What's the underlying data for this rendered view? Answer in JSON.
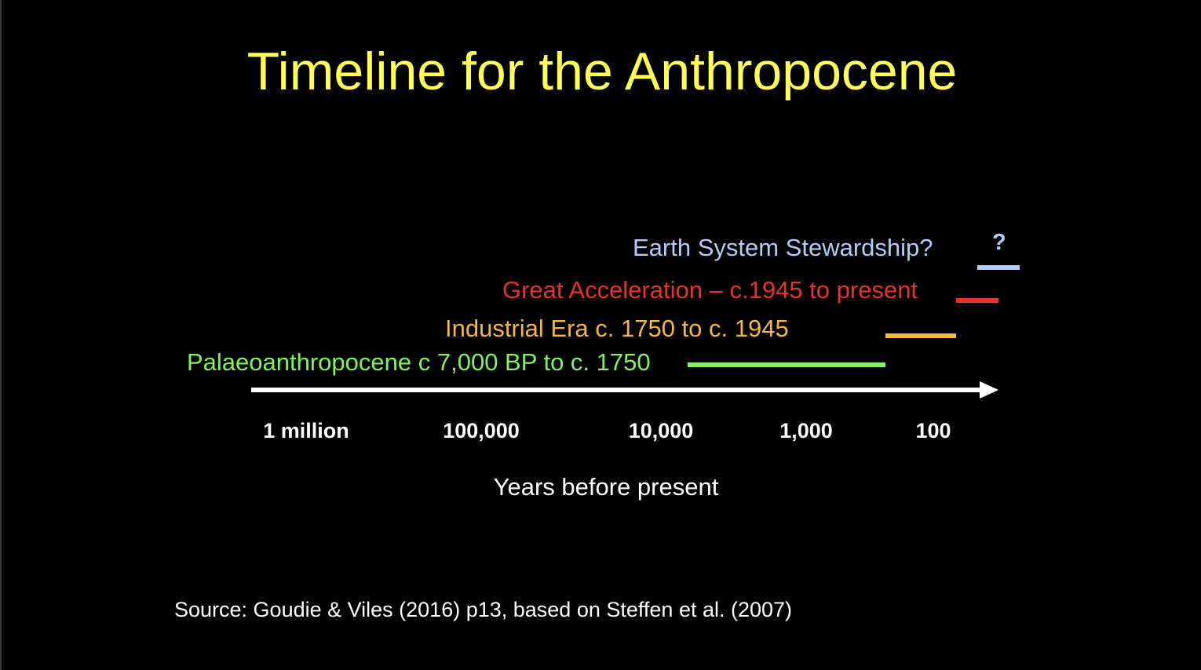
{
  "title": "Timeline for the Anthropocene",
  "colors": {
    "background": "#000000",
    "title": "#ffff55",
    "stewardship": "#b3ccf5",
    "great_acceleration": "#e8332a",
    "industrial_era": "#f5b83d",
    "palaeoanthropocene": "#7ef55a",
    "axis": "#ffffff"
  },
  "eras": {
    "stewardship": {
      "label": "Earth System Stewardship?",
      "marker": "?"
    },
    "great_acceleration": {
      "label": "Great Acceleration – c.1945 to present"
    },
    "industrial_era": {
      "label": "Industrial Era c. 1750 to c. 1945"
    },
    "palaeoanthropocene": {
      "label": "Palaeoanthropocene  c 7,000 BP to c. 1750"
    }
  },
  "axis": {
    "ticks": [
      "1 million",
      "100,000",
      "10,000",
      "1,000",
      "100"
    ],
    "title": "Years before present",
    "scale": "log",
    "direction": "toward present"
  },
  "source": "Source: Goudie & Viles (2016) p13, based on Steffen et al. (2007)"
}
